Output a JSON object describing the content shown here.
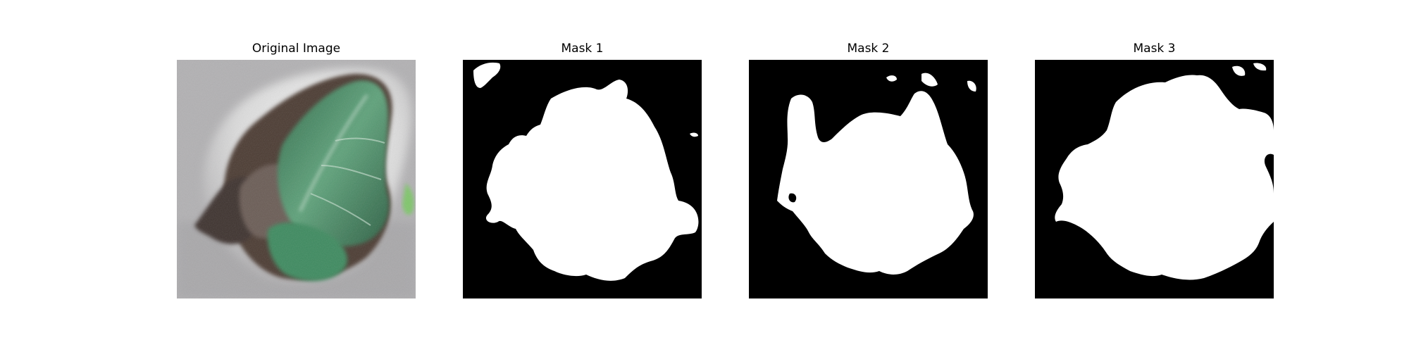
{
  "figure": {
    "panels": [
      {
        "title": "Original Image"
      },
      {
        "title": "Mask 1"
      },
      {
        "title": "Mask 2"
      },
      {
        "title": "Mask 3"
      }
    ],
    "colors": {
      "mask_background": "#000000",
      "mask_foreground": "#ffffff",
      "photo_background": "#b3b2b4",
      "leaf_green": "#3f8a5c",
      "leaf_dark": "#2f6e4a",
      "lesion_brown": "#4e4038",
      "frost_white": "#eeeeee"
    }
  }
}
